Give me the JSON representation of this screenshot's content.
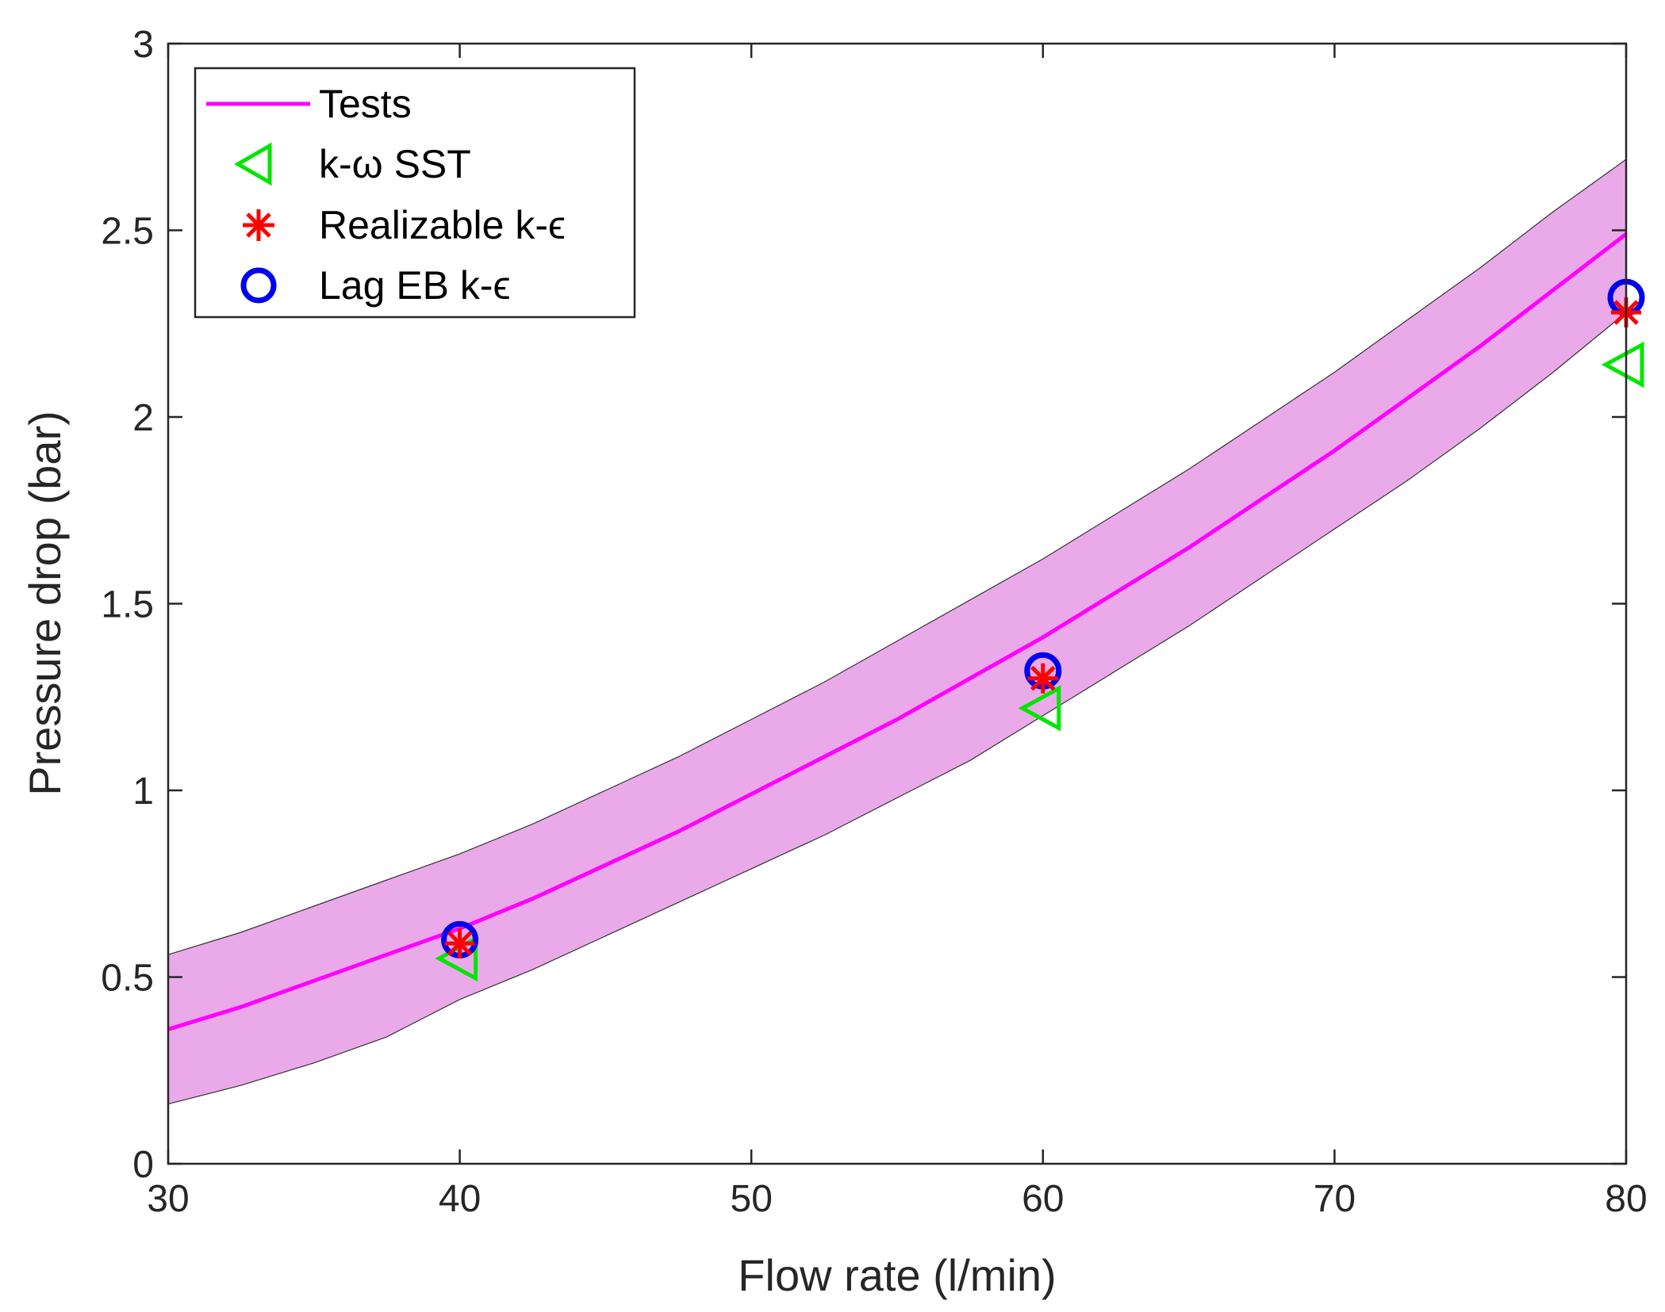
{
  "chart_data": {
    "type": "line",
    "title": "",
    "xlabel": "Flow rate (l/min)",
    "ylabel": "Pressure drop (bar)",
    "xlim": [
      30,
      80
    ],
    "ylim": [
      0,
      3
    ],
    "xticks": [
      30,
      40,
      50,
      60,
      70,
      80
    ],
    "yticks": [
      0,
      0.5,
      1,
      1.5,
      2,
      2.5,
      3
    ],
    "xtick_labels": [
      "30",
      "40",
      "50",
      "60",
      "70",
      "80"
    ],
    "ytick_labels": [
      "0",
      "0.5",
      "1",
      "1.5",
      "2",
      "2.5",
      "3"
    ],
    "grid": false,
    "legend_position": "top-left",
    "series": [
      {
        "name": "Tests",
        "kind": "line",
        "color": "#ff00ff",
        "x": [
          30,
          32.5,
          35,
          37.5,
          40,
          42.5,
          45,
          47.5,
          50,
          52.5,
          55,
          57.5,
          60,
          62.5,
          65,
          67.5,
          70,
          72.5,
          75,
          77.5,
          80
        ],
        "y": [
          0.36,
          0.42,
          0.49,
          0.56,
          0.63,
          0.71,
          0.8,
          0.89,
          0.99,
          1.09,
          1.19,
          1.3,
          1.41,
          1.53,
          1.65,
          1.78,
          1.91,
          2.05,
          2.19,
          2.34,
          2.49
        ],
        "band": {
          "lower": [
            0.16,
            0.21,
            0.27,
            0.34,
            0.44,
            0.52,
            0.61,
            0.7,
            0.79,
            0.88,
            0.98,
            1.08,
            1.2,
            1.32,
            1.44,
            1.57,
            1.7,
            1.83,
            1.97,
            2.12,
            2.28
          ],
          "upper": [
            0.56,
            0.62,
            0.69,
            0.76,
            0.83,
            0.91,
            1.0,
            1.09,
            1.19,
            1.29,
            1.4,
            1.51,
            1.62,
            1.74,
            1.86,
            1.99,
            2.12,
            2.26,
            2.4,
            2.55,
            2.69
          ],
          "color": "#eaaaea"
        }
      },
      {
        "name": "k-ω SST",
        "kind": "marker",
        "marker": "triangle-left",
        "color": "#00e600",
        "x": [
          40,
          60,
          80
        ],
        "y": [
          0.55,
          1.22,
          2.14
        ]
      },
      {
        "name": "Realizable k-ϵ",
        "kind": "marker",
        "marker": "asterisk",
        "color": "#ff0000",
        "x": [
          40,
          60,
          80
        ],
        "y": [
          0.59,
          1.3,
          2.28
        ]
      },
      {
        "name": "Lag EB k-ϵ",
        "kind": "marker",
        "marker": "circle",
        "color": "#0000ee",
        "x": [
          40,
          60,
          80
        ],
        "y": [
          0.6,
          1.32,
          2.32
        ]
      }
    ]
  }
}
